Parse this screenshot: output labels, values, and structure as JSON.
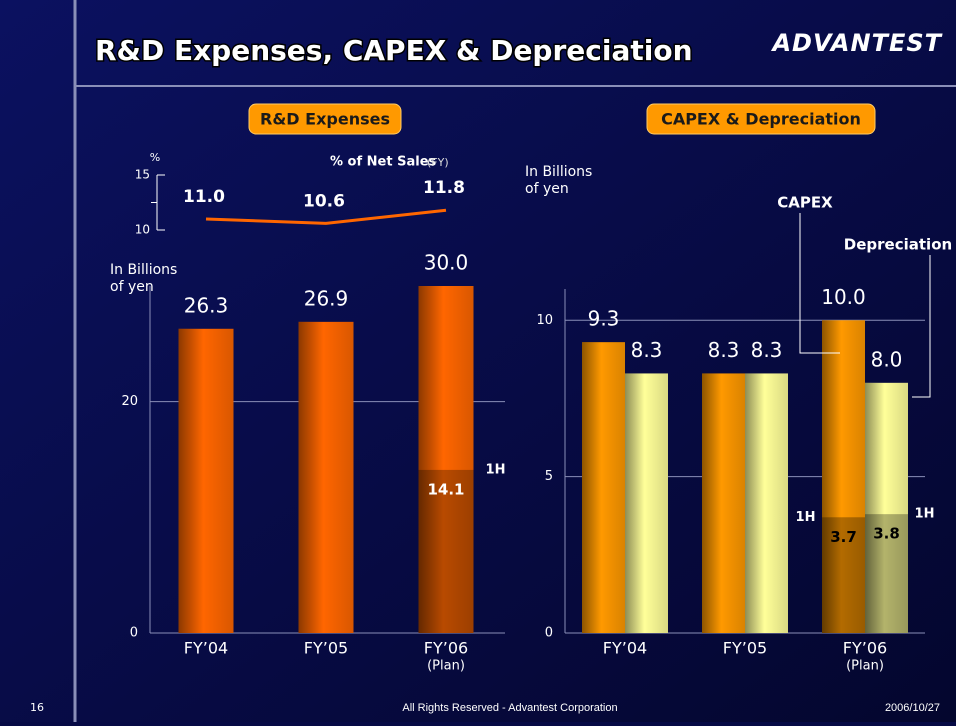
{
  "header": {
    "title": "R&D Expenses, CAPEX & Depreciation",
    "logo": "ADVANTEST"
  },
  "chart_data": [
    {
      "type": "line",
      "title": "% of Net Sales",
      "subtitle": "(FY)",
      "y_label": "%",
      "values": [
        11.0,
        10.6,
        11.8
      ],
      "value_labels": [
        "11.0",
        "10.6",
        "11.8"
      ],
      "color": "#ff6600",
      "ylim": [
        10,
        15
      ],
      "yticks": [
        10,
        15
      ]
    },
    {
      "type": "bar",
      "title": "R&D Expenses",
      "y_label": [
        "In Billions",
        "of yen"
      ],
      "categories": [
        "FY’04",
        "FY’05",
        "FY’06"
      ],
      "plan_label": "(Plan)",
      "ylim": [
        0,
        30
      ],
      "yticks": [
        0,
        20
      ],
      "grid": true,
      "series": [
        {
          "color": "#ff6600",
          "values": [
            26.3,
            26.9,
            30.0
          ],
          "value_labels": [
            "26.3",
            "26.9",
            "30.0"
          ],
          "label_color": "#ffffff"
        },
        {
          "name": "1H",
          "color": "#b84a00",
          "values": [
            null,
            null,
            14.1
          ],
          "label_color": "#ffffff",
          "overlay_of": 0
        }
      ]
    },
    {
      "type": "bar",
      "title": "CAPEX & Depreciation",
      "y_label": [
        "In Billions",
        "of yen"
      ],
      "categories": [
        "FY’04",
        "FY’05",
        "FY’06"
      ],
      "plan_label": "(Plan)",
      "ylim": [
        0,
        11
      ],
      "yticks": [
        0,
        5,
        10
      ],
      "grid": true,
      "series": [
        {
          "name": "CAPEX",
          "color": "#ff9900",
          "values": [
            9.3,
            8.3,
            10.0
          ],
          "value_labels": [
            "9.3",
            "8.3",
            "10.0"
          ],
          "label_color": "#ffffff"
        },
        {
          "name": "Depreciation",
          "color": "#ffff99",
          "values": [
            8.3,
            8.3,
            8.0
          ],
          "value_labels": [
            "8.3",
            "8.3",
            "8.0"
          ],
          "label_color": "#ffffff"
        },
        {
          "name": "1H",
          "color": "#b36b00",
          "values": [
            null,
            null,
            3.7
          ],
          "label_color": "#000000",
          "overlay_of": 0
        },
        {
          "name": "1H",
          "color": "#b3b36b",
          "values": [
            null,
            null,
            3.8
          ],
          "label_color": "#000000",
          "overlay_of": 1
        }
      ]
    }
  ],
  "footer": {
    "page": "16",
    "copyright": "All Rights Reserved - Advantest Corporation",
    "date": "2006/10/27"
  }
}
